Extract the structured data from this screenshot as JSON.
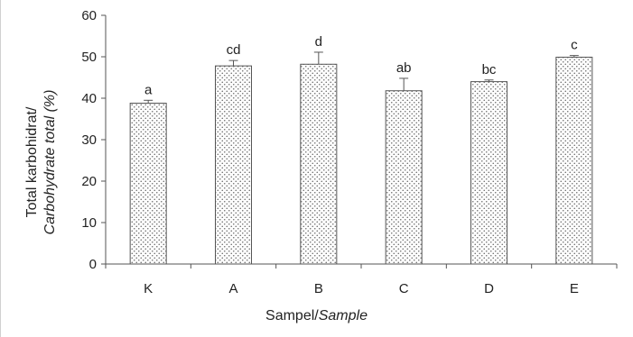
{
  "chart_data": {
    "type": "bar",
    "categories": [
      "K",
      "A",
      "B",
      "C",
      "D",
      "E"
    ],
    "values": [
      38.8,
      47.8,
      48.2,
      41.8,
      44.0,
      49.9
    ],
    "error": [
      0.7,
      1.3,
      2.9,
      3.0,
      0.4,
      0.4
    ],
    "letters": [
      "a",
      "cd",
      "d",
      "ab",
      "bc",
      "c"
    ],
    "title": "",
    "ylabel_line1": "Total karbohidrat/",
    "ylabel_line2": "Carbohydrate total (%)",
    "xlabel_normal": "Sampel/",
    "xlabel_italic": "Sample",
    "ylim": [
      0,
      60
    ],
    "yticks": [
      "0",
      "10",
      "20",
      "30",
      "40",
      "50",
      "60"
    ],
    "grid": false,
    "bar_fill": "dotted",
    "colors": {
      "bar_edge": "#555555",
      "dot": "#6b6b6b",
      "axis": "#555555",
      "text": "#222222"
    }
  }
}
